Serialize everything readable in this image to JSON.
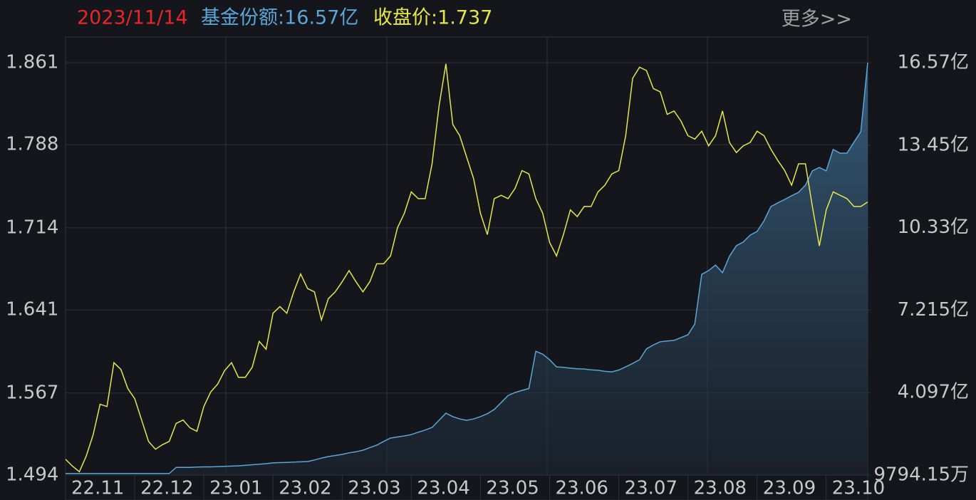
{
  "chart_data": {
    "type": "line",
    "title": "2023/11/14",
    "more": "更多>>",
    "categories": [
      "22.11",
      null,
      null,
      null,
      null,
      null,
      null,
      null,
      null,
      null,
      "22.12",
      null,
      null,
      null,
      null,
      null,
      null,
      null,
      null,
      null,
      "23.01",
      null,
      null,
      null,
      null,
      null,
      null,
      null,
      null,
      null,
      "23.02",
      null,
      null,
      null,
      null,
      null,
      null,
      null,
      null,
      null,
      "23.03",
      null,
      null,
      null,
      null,
      null,
      null,
      null,
      null,
      null,
      "23.04",
      null,
      null,
      null,
      null,
      null,
      null,
      null,
      null,
      null,
      "23.05",
      null,
      null,
      null,
      null,
      null,
      null,
      null,
      null,
      null,
      "23.06",
      null,
      null,
      null,
      null,
      null,
      null,
      null,
      null,
      null,
      "23.07",
      null,
      null,
      null,
      null,
      null,
      null,
      null,
      null,
      null,
      "23.08",
      null,
      null,
      null,
      null,
      null,
      null,
      null,
      null,
      null,
      "23.09",
      null,
      null,
      null,
      null,
      null,
      null,
      null,
      null,
      null,
      "23.10",
      null,
      null,
      null,
      null,
      null,
      null
    ],
    "series": [
      {
        "name": "基金份额:16.57亿",
        "color": "#5aa6d8",
        "axis": "y2",
        "area": true,
        "values": [
          1.04,
          1.04,
          1.04,
          1.04,
          1.04,
          1.04,
          1.04,
          1.04,
          1.04,
          1.04,
          1.04,
          1.04,
          1.04,
          1.04,
          1.04,
          1.04,
          1.27,
          1.27,
          1.27,
          1.28,
          1.29,
          1.29,
          1.3,
          1.31,
          1.32,
          1.33,
          1.35,
          1.37,
          1.39,
          1.41,
          1.44,
          1.45,
          1.46,
          1.47,
          1.48,
          1.49,
          1.55,
          1.62,
          1.68,
          1.72,
          1.76,
          1.82,
          1.86,
          1.92,
          2.02,
          2.11,
          2.25,
          2.38,
          2.42,
          2.46,
          2.51,
          2.6,
          2.68,
          2.78,
          3.05,
          3.32,
          3.19,
          3.1,
          3.05,
          3.1,
          3.19,
          3.3,
          3.46,
          3.72,
          3.99,
          4.1,
          4.18,
          4.25,
          5.66,
          5.55,
          5.34,
          5.07,
          5.05,
          5.02,
          5.0,
          4.99,
          4.96,
          4.94,
          4.9,
          4.88,
          4.95,
          5.07,
          5.2,
          5.34,
          5.75,
          5.9,
          6.02,
          6.05,
          6.07,
          6.18,
          6.28,
          6.69,
          8.57,
          8.71,
          8.92,
          8.63,
          9.25,
          9.65,
          9.79,
          10.05,
          10.19,
          10.59,
          11.13,
          11.27,
          11.4,
          11.54,
          11.67,
          11.94,
          12.48,
          12.61,
          12.48,
          13.29,
          13.15,
          13.15,
          13.56,
          13.96,
          16.57
        ]
      },
      {
        "name": "收盘价:1.737",
        "color": "#e6e64a",
        "values": [
          1.508,
          1.502,
          1.497,
          1.511,
          1.53,
          1.557,
          1.555,
          1.594,
          1.588,
          1.571,
          1.562,
          1.543,
          1.524,
          1.517,
          1.521,
          1.524,
          1.54,
          1.543,
          1.536,
          1.533,
          1.555,
          1.568,
          1.575,
          1.587,
          1.594,
          1.581,
          1.581,
          1.59,
          1.613,
          1.606,
          1.638,
          1.644,
          1.638,
          1.657,
          1.673,
          1.66,
          1.657,
          1.632,
          1.651,
          1.657,
          1.666,
          1.676,
          1.666,
          1.657,
          1.666,
          1.682,
          1.682,
          1.689,
          1.714,
          1.727,
          1.746,
          1.74,
          1.74,
          1.771,
          1.822,
          1.86,
          1.806,
          1.796,
          1.777,
          1.758,
          1.727,
          1.708,
          1.74,
          1.743,
          1.74,
          1.749,
          1.765,
          1.762,
          1.74,
          1.727,
          1.701,
          1.689,
          1.708,
          1.73,
          1.724,
          1.733,
          1.733,
          1.746,
          1.752,
          1.762,
          1.765,
          1.796,
          1.847,
          1.857,
          1.854,
          1.838,
          1.835,
          1.815,
          1.818,
          1.809,
          1.796,
          1.793,
          1.8,
          1.787,
          1.796,
          1.818,
          1.79,
          1.781,
          1.787,
          1.79,
          1.8,
          1.796,
          1.784,
          1.774,
          1.765,
          1.752,
          1.771,
          1.771,
          1.733,
          1.698,
          1.73,
          1.746,
          1.743,
          1.74,
          1.733,
          1.733,
          1.737
        ]
      }
    ],
    "ylim": [
      1.494,
      1.861
    ],
    "yticks": [
      1.494,
      1.567,
      1.641,
      1.714,
      1.788,
      1.861
    ],
    "y2lim": [
      0.979415,
      16.57
    ],
    "y2ticks": [
      {
        "value": 0.979415,
        "label": "9794.15万"
      },
      {
        "value": 4.097,
        "label": "4.097亿"
      },
      {
        "value": 7.215,
        "label": "7.215亿"
      },
      {
        "value": 10.33,
        "label": "10.33亿"
      },
      {
        "value": 13.45,
        "label": "13.45亿"
      },
      {
        "value": 16.57,
        "label": "16.57亿"
      }
    ],
    "grid": true
  }
}
